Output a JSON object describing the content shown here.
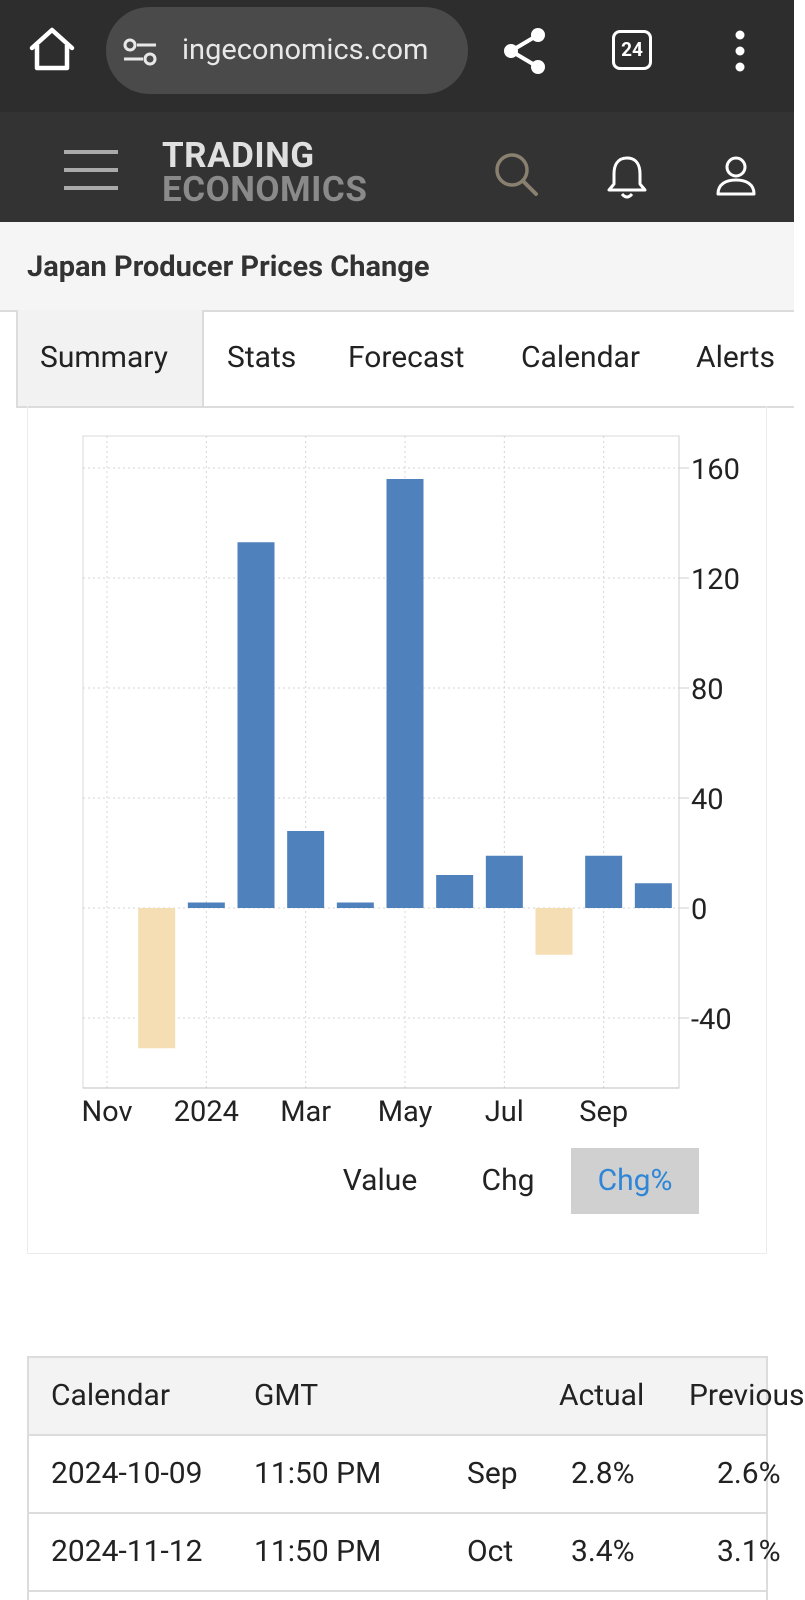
{
  "browser": {
    "url": "ingeconomics.com",
    "tab_count": "24"
  },
  "site": {
    "logo_line1": "TRADING",
    "logo_line2": "ECONOMICS"
  },
  "page": {
    "title": "Japan Producer Prices Change"
  },
  "tabs": [
    "Summary",
    "Stats",
    "Forecast",
    "Calendar",
    "Alerts"
  ],
  "chart_buttons": {
    "value": "Value",
    "chg": "Chg",
    "chg_pct": "Chg%"
  },
  "chart_data": {
    "type": "bar",
    "x_tick_labels": [
      "Nov",
      "2024",
      "Mar",
      "May",
      "Jul",
      "Sep"
    ],
    "y_ticks": [
      160,
      120,
      80,
      40,
      0,
      -40
    ],
    "ylim": [
      -65,
      170
    ],
    "categories": [
      "Nov 2023",
      "Dec 2023",
      "Jan 2024",
      "Feb 2024",
      "Mar 2024",
      "Apr 2024",
      "May 2024",
      "Jun 2024",
      "Jul 2024",
      "Aug 2024",
      "Sep 2024",
      "Oct 2024"
    ],
    "values": [
      null,
      -51,
      2,
      133,
      28,
      2,
      156,
      12,
      19,
      -17,
      19,
      9
    ],
    "positive_color": "#4f81bd",
    "negative_color": "#f5deb3",
    "grid": true,
    "y_axis_side": "right"
  },
  "calendar": {
    "headers": [
      "Calendar",
      "GMT",
      "",
      "Actual",
      "Previous"
    ],
    "rows": [
      [
        "2024-10-09",
        "11:50 PM",
        "Sep",
        "2.8%",
        "2.6%"
      ],
      [
        "2024-11-12",
        "11:50 PM",
        "Oct",
        "3.4%",
        "3.1%"
      ]
    ]
  }
}
